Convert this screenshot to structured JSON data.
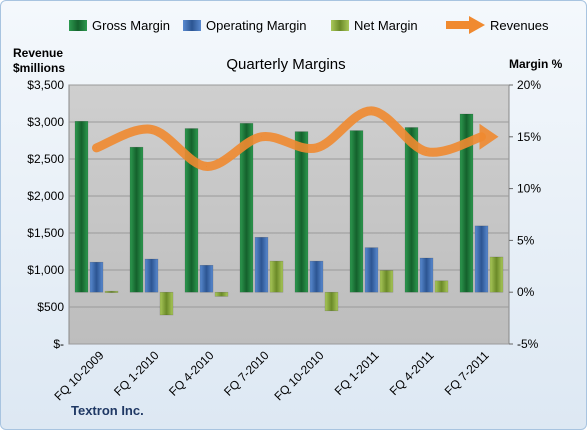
{
  "chart_data": {
    "type": "bar",
    "title": "Quarterly Margins",
    "company": "Textron Inc.",
    "left_axis": {
      "title_line1": "Revenue",
      "title_line2": "$millions",
      "range": [
        0,
        3500
      ],
      "ticks": [
        "$-",
        "$500",
        "$1,000",
        "$1,500",
        "$2,000",
        "$2,500",
        "$3,000",
        "$3,500"
      ]
    },
    "right_axis": {
      "title": "Margin %",
      "range": [
        -5,
        20
      ],
      "ticks": [
        "-5%",
        "0%",
        "5%",
        "10%",
        "15%",
        "20%"
      ]
    },
    "categories": [
      "FQ 10-2009",
      "FQ 1-2010",
      "FQ 4-2010",
      "FQ 7-2010",
      "FQ 10-2010",
      "FQ 1-2011",
      "FQ 4-2011",
      "FQ 7-2011"
    ],
    "series": [
      {
        "name": "Gross Margin",
        "axis": "right",
        "kind": "bar",
        "color": "#1e7a3c",
        "values": [
          16.5,
          14.0,
          15.8,
          16.3,
          15.5,
          15.6,
          15.9,
          17.2
        ]
      },
      {
        "name": "Operating Margin",
        "axis": "right",
        "kind": "bar",
        "color": "#3f6db0",
        "values": [
          2.9,
          3.2,
          2.6,
          5.3,
          3.0,
          4.3,
          3.3,
          6.4
        ]
      },
      {
        "name": "Net Margin",
        "axis": "right",
        "kind": "bar",
        "color": "#8caa3c",
        "values": [
          0.1,
          -2.2,
          -0.4,
          3.0,
          -1.8,
          2.1,
          1.1,
          3.4
        ]
      },
      {
        "name": "Revenues",
        "axis": "left",
        "kind": "line",
        "color": "#f08a30",
        "values": [
          2650,
          2900,
          2400,
          2800,
          2650,
          3150,
          2600,
          2800
        ]
      }
    ],
    "legend_position": "top",
    "grid": true
  }
}
